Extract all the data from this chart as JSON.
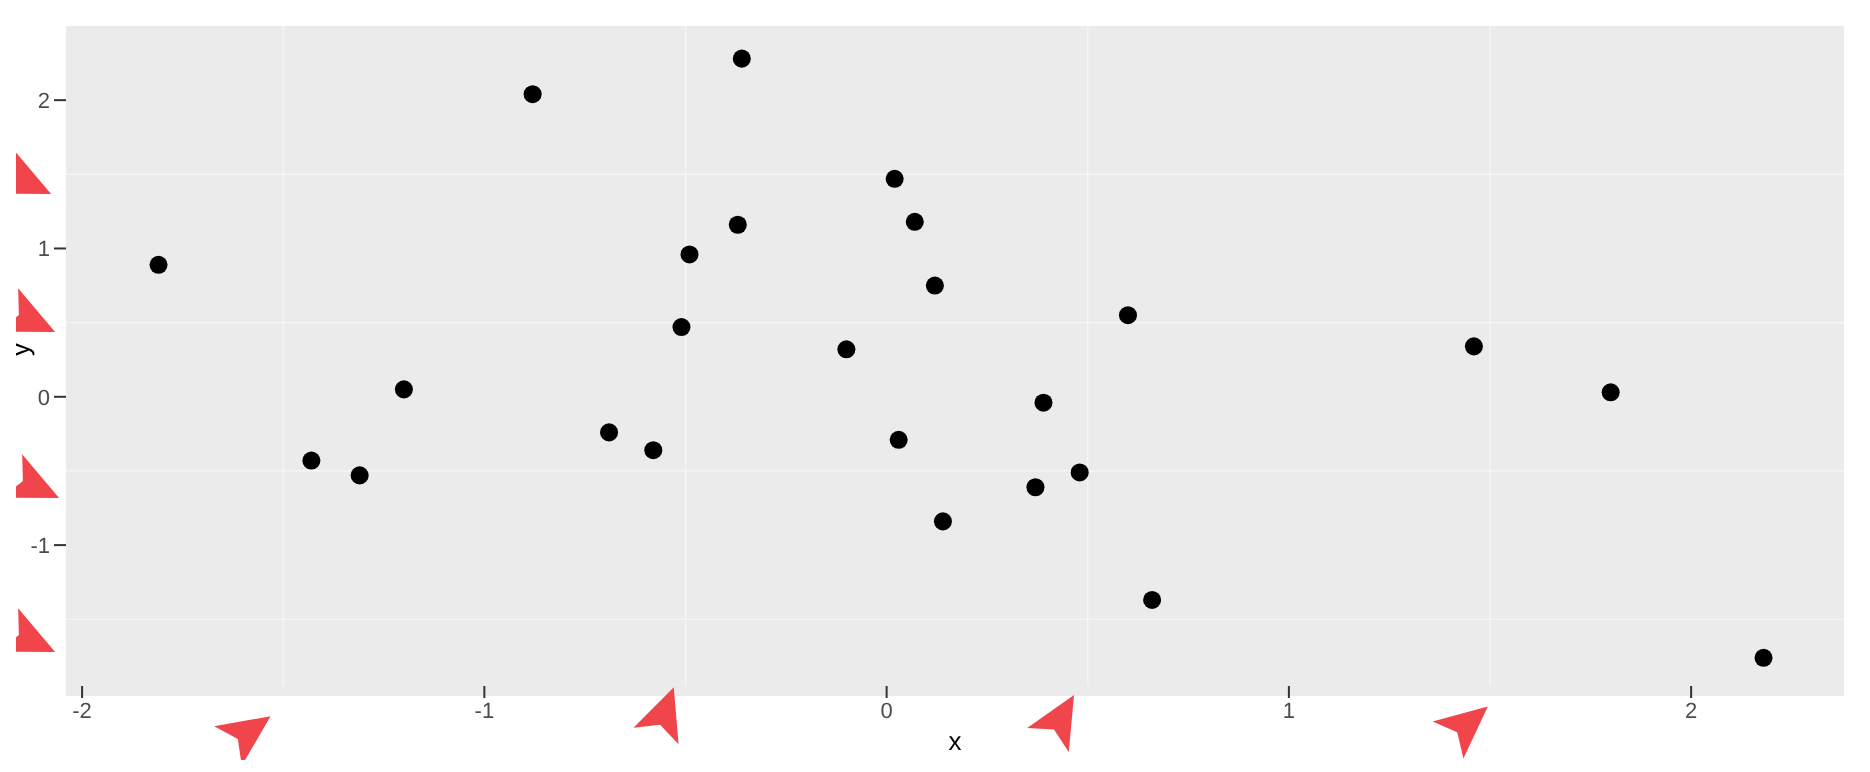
{
  "chart_data": {
    "type": "scatter",
    "xlabel": "x",
    "ylabel": "y",
    "x": [
      -1.81,
      -1.43,
      -1.31,
      -1.2,
      -0.88,
      -0.69,
      -0.58,
      -0.51,
      -0.49,
      -0.37,
      -0.36,
      -0.1,
      0.02,
      0.03,
      0.07,
      0.12,
      0.14,
      0.37,
      0.39,
      0.48,
      0.6,
      0.66,
      1.46,
      1.8,
      2.18
    ],
    "series": [
      {
        "color": "#000000",
        "values": [
          0.89,
          -0.43,
          -0.53,
          0.05,
          2.04,
          -0.24,
          -0.36,
          0.47,
          0.96,
          1.16,
          2.28,
          0.32,
          1.47,
          -0.29,
          1.18,
          0.75,
          -0.84,
          -0.61,
          -0.04,
          -0.51,
          0.55,
          -1.37,
          0.34,
          0.03,
          -1.76
        ]
      }
    ],
    "xlim": [
      -2.04,
      2.38
    ],
    "ylim": [
      -1.95,
      2.5
    ],
    "xticks": [
      -2,
      -1,
      0,
      1,
      2
    ],
    "yticks": [
      -1,
      0,
      1,
      2
    ],
    "grid": true,
    "marker": "circle"
  }
}
